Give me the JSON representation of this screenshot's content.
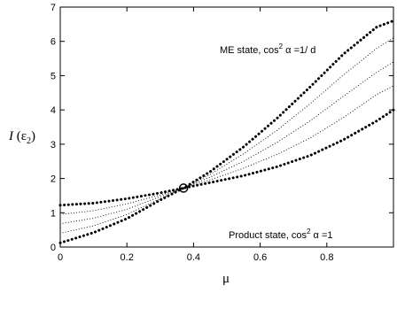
{
  "chart_data": {
    "type": "line",
    "title": "",
    "xlabel": "μ",
    "ylabel": {
      "main": "I",
      "open": " (ε",
      "sub": "2",
      "close": ")"
    },
    "xlim": [
      0,
      1
    ],
    "ylim": [
      0,
      7
    ],
    "xticks": [
      0,
      0.2,
      0.4,
      0.6,
      0.8
    ],
    "xtick_labels": [
      "0",
      "0.2",
      "0.4",
      "0.6",
      "0.8"
    ],
    "yticks": [
      0,
      1,
      2,
      3,
      4,
      5,
      6,
      7
    ],
    "ytick_labels": [
      "0",
      "1",
      "2",
      "3",
      "4",
      "5",
      "6",
      "7"
    ],
    "grid": false,
    "annotations": [
      {
        "text": "ME state, cos",
        "sup": "2",
        "text2": " α =1/ d"
      },
      {
        "text": "Product state, cos",
        "sup": "2",
        "text2": " α =1"
      }
    ],
    "crossing_point": {
      "x": 0.37,
      "y": 1.72
    },
    "series": [
      {
        "style": "heavy",
        "x": [
          0,
          0.1,
          0.2,
          0.3,
          0.37,
          0.45,
          0.55,
          0.65,
          0.75,
          0.85,
          0.95,
          1.0
        ],
        "values": [
          1.22,
          1.28,
          1.41,
          1.58,
          1.72,
          1.88,
          2.08,
          2.34,
          2.67,
          3.13,
          3.68,
          4.0
        ]
      },
      {
        "style": "light",
        "x": [
          0,
          0.1,
          0.2,
          0.3,
          0.37,
          0.45,
          0.55,
          0.65,
          0.75,
          0.85,
          0.95,
          1.0
        ],
        "values": [
          0.95,
          1.06,
          1.26,
          1.52,
          1.72,
          1.96,
          2.3,
          2.7,
          3.18,
          3.78,
          4.45,
          4.7
        ]
      },
      {
        "style": "light",
        "x": [
          0,
          0.1,
          0.2,
          0.3,
          0.37,
          0.45,
          0.55,
          0.65,
          0.75,
          0.85,
          0.95,
          1.0
        ],
        "values": [
          0.68,
          0.84,
          1.1,
          1.47,
          1.72,
          2.04,
          2.5,
          3.05,
          3.68,
          4.4,
          5.1,
          5.4
        ]
      },
      {
        "style": "light",
        "x": [
          0,
          0.1,
          0.2,
          0.3,
          0.37,
          0.45,
          0.55,
          0.65,
          0.75,
          0.85,
          0.95,
          1.0
        ],
        "values": [
          0.4,
          0.62,
          0.95,
          1.41,
          1.72,
          2.12,
          2.72,
          3.4,
          4.18,
          5.02,
          5.8,
          6.1
        ]
      },
      {
        "style": "heavy",
        "x": [
          0,
          0.1,
          0.2,
          0.3,
          0.37,
          0.45,
          0.55,
          0.65,
          0.75,
          0.85,
          0.95,
          1.0
        ],
        "values": [
          0.12,
          0.42,
          0.83,
          1.37,
          1.72,
          2.2,
          2.92,
          3.75,
          4.67,
          5.63,
          6.42,
          6.6
        ]
      }
    ]
  }
}
